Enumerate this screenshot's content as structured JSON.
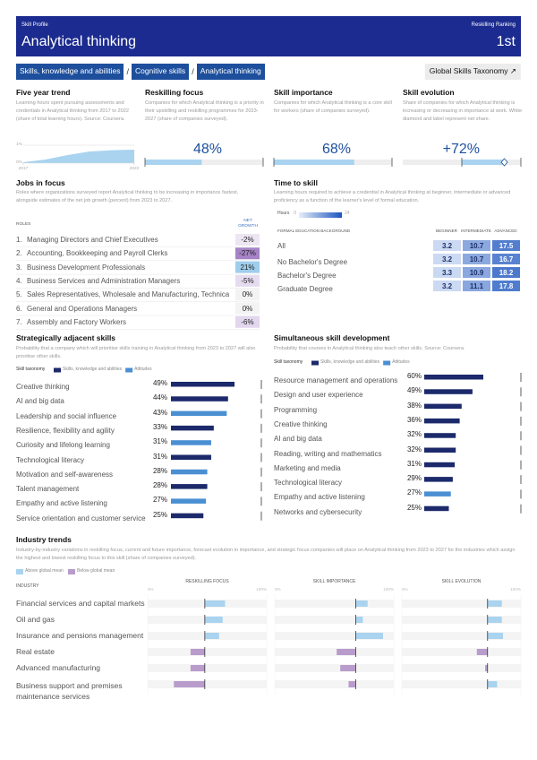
{
  "header": {
    "label": "Skill Profile",
    "ranking_label": "Reskilling Ranking",
    "title": "Analytical thinking",
    "rank": "1st"
  },
  "breadcrumb": [
    "Skills, knowledge and abilities",
    "Cognitive skills",
    "Analytical thinking"
  ],
  "separator": "/",
  "taxonomy_link": "Global Skills Taxonomy ↗",
  "overview": {
    "five_year_trend": {
      "title": "Five year trend",
      "description": "Learning hours spent pursuing assessments and credentials in Analytical thinking from 2017 to 2022 (share of total learning hours). Source: Coursera.",
      "x": [
        2017,
        2018,
        2019,
        2020,
        2021,
        2022
      ],
      "values": [
        0.05,
        0.2,
        0.45,
        0.65,
        0.72,
        0.75
      ],
      "xticks": [
        2017,
        2022
      ],
      "ylim": [
        0,
        1
      ],
      "yticks": [
        {
          "value": 1,
          "label": "1%"
        },
        {
          "value": 0,
          "label": "0%"
        }
      ],
      "color": "#a9d3ef"
    },
    "reskilling_focus": {
      "title": "Reskilling focus",
      "description": "Companies for which Analytical thinking is a priority in their upskilling and reskilling programmes for 2023-2027 (share of companies surveyed).",
      "value": 48,
      "value_label": "48%",
      "xlim": [
        0,
        100
      ],
      "color": "#a9d3ef"
    },
    "skill_importance": {
      "title": "Skill importance",
      "description": "Companies for which Analytical thinking is a core skill for workers (share of companies surveyed).",
      "value": 68,
      "value_label": "68%",
      "xlim": [
        0,
        100
      ],
      "color": "#a9d3ef"
    },
    "skill_evolution": {
      "title": "Skill evolution",
      "description": "Share of companies for which Analytical thinking is increasing or decreasing in importance at work. White diamond and label represent net share.",
      "value": 72,
      "value_label": "+72%",
      "xlim": [
        -100,
        100
      ],
      "color": "#a9d3ef"
    }
  },
  "jobs_in_focus": {
    "title": "Jobs in focus",
    "description": "Roles where organizations surveyed report Analytical thinking to be increasing in importance fastest, alongside estimates of the net job growth (percent) from 2023 to 2027.",
    "columns": [
      "ROLES",
      "NET GROWTH"
    ],
    "rows": [
      {
        "rank": "1.",
        "role": "Managing Directors and Chief Executives",
        "growth": "-2%",
        "color": "#ece6f3"
      },
      {
        "rank": "2.",
        "role": "Accounting, Bookkeeping and Payroll Clerks",
        "growth": "-27%",
        "color": "#a583c6"
      },
      {
        "rank": "3.",
        "role": "Business Development Professionals",
        "growth": "21%",
        "color": "#9fcdec"
      },
      {
        "rank": "4.",
        "role": "Business Services and Administration Managers",
        "growth": "-5%",
        "color": "#e6dcf0"
      },
      {
        "rank": "5.",
        "role": "Sales Representatives, Wholesale and Manufacturing, Technical ...",
        "growth": "0%",
        "color": "#f3f3f3"
      },
      {
        "rank": "6.",
        "role": "General and Operations Managers",
        "growth": "0%",
        "color": "#f3f3f3"
      },
      {
        "rank": "7.",
        "role": "Assembly and Factory Workers",
        "growth": "-6%",
        "color": "#e2d7ee"
      }
    ]
  },
  "time_to_skill": {
    "title": "Time to skill",
    "description": "Learning hours required to achieve a credential in Analytical thinking at beginner, intermediate or advanced proficiency as a function of the learner's level of formal education.",
    "legend": {
      "label": "Hours",
      "min": 0,
      "max": 24
    },
    "columns": [
      "FORMAL EDUCATION BACKGROUND",
      "BEGINNER",
      "INTERMEDIATE",
      "ADVANCED"
    ],
    "rows": [
      {
        "label": "All",
        "values": [
          3.2,
          10.7,
          17.5
        ]
      },
      {
        "label": "No Bachelor's Degree",
        "values": [
          3.2,
          10.7,
          16.7
        ]
      },
      {
        "label": "Bachelor's Degree",
        "values": [
          3.3,
          10.9,
          18.2
        ]
      },
      {
        "label": "Graduate Degree",
        "values": [
          3.2,
          11.1,
          17.8
        ]
      }
    ]
  },
  "adjacent_skills": {
    "title": "Strategically adjacent skills",
    "description": "Probability that a company which will prioritise skills training in Analytical thinking from 2023 to 2027 will also prioritise other skills.",
    "legend": {
      "title": "Skill taxonomy",
      "items": [
        {
          "name": "Skills, knowledge and abilities",
          "color": "#1c2a6b"
        },
        {
          "name": "Attitudes",
          "color": "#4a8fd2"
        }
      ]
    },
    "items": [
      {
        "name": "Creative thinking",
        "value": 49,
        "label": "49%",
        "color": "#1c2a6b"
      },
      {
        "name": "AI and big data",
        "value": 44,
        "label": "44%",
        "color": "#1c2a6b"
      },
      {
        "name": "Leadership and social influence",
        "value": 43,
        "label": "43%",
        "color": "#4a8fd2"
      },
      {
        "name": "Resilience, flexibility and agility",
        "value": 33,
        "label": "33%",
        "color": "#1c2a6b"
      },
      {
        "name": "Curiosity and lifelong learning",
        "value": 31,
        "label": "31%",
        "color": "#4a8fd2"
      },
      {
        "name": "Technological literacy",
        "value": 31,
        "label": "31%",
        "color": "#1c2a6b"
      },
      {
        "name": "Motivation and self-awareness",
        "value": 28,
        "label": "28%",
        "color": "#4a8fd2"
      },
      {
        "name": "Talent management",
        "value": 28,
        "label": "28%",
        "color": "#1c2a6b"
      },
      {
        "name": "Empathy and active listening",
        "value": 27,
        "label": "27%",
        "color": "#4a8fd2"
      },
      {
        "name": "Service orientation and customer service",
        "value": 25,
        "label": "25%",
        "color": "#1c2a6b"
      }
    ]
  },
  "simultaneous_skills": {
    "title": "Simultaneous skill development",
    "description": "Probability that courses in Analytical thinking also teach other skills. Source: Coursera.",
    "legend": {
      "title": "Skill taxonomy",
      "items": [
        {
          "name": "Skills, knowledge and abilities",
          "color": "#1c2a6b"
        },
        {
          "name": "Attitudes",
          "color": "#4a8fd2"
        }
      ]
    },
    "items": [
      {
        "name": "Resource management and operations",
        "value": 60,
        "label": "60%",
        "color": "#1c2a6b"
      },
      {
        "name": "Design and user experience",
        "value": 49,
        "label": "49%",
        "color": "#1c2a6b"
      },
      {
        "name": "Programming",
        "value": 38,
        "label": "38%",
        "color": "#1c2a6b"
      },
      {
        "name": "Creative thinking",
        "value": 36,
        "label": "36%",
        "color": "#1c2a6b"
      },
      {
        "name": "AI and big data",
        "value": 32,
        "label": "32%",
        "color": "#1c2a6b"
      },
      {
        "name": "Reading, writing and mathematics",
        "value": 32,
        "label": "32%",
        "color": "#1c2a6b"
      },
      {
        "name": "Marketing and media",
        "value": 31,
        "label": "31%",
        "color": "#1c2a6b"
      },
      {
        "name": "Technological literacy",
        "value": 29,
        "label": "29%",
        "color": "#1c2a6b"
      },
      {
        "name": "Empathy and active listening",
        "value": 27,
        "label": "27%",
        "color": "#4a8fd2"
      },
      {
        "name": "Networks and cybersecurity",
        "value": 25,
        "label": "25%",
        "color": "#1c2a6b"
      }
    ]
  },
  "industry_trends": {
    "title": "Industry trends",
    "description": "Industry-by-industry variations in reskilling focus, current and future importance, forecast evolution in importance, and strategic focus companies will place on Analytical thinking from 2023 to 2027 for the industries which assign the highest and lowest reskilling focus to this skill (share of companies surveyed).",
    "legend": [
      {
        "name": "Above global mean",
        "color": "#a9d3ef"
      },
      {
        "name": "Below global mean",
        "color": "#b89ccc"
      }
    ],
    "row_header": "INDUSTRY",
    "columns": [
      {
        "title": "RESKILLING FOCUS",
        "global_mean": 48,
        "ticks": [
          {
            "value": 0,
            "label": "0%"
          },
          {
            "value": 100,
            "label": "100%"
          }
        ]
      },
      {
        "title": "SKILL IMPORTANCE",
        "global_mean": 68,
        "ticks": [
          {
            "value": 0,
            "label": "0%"
          },
          {
            "value": 100,
            "label": "100%"
          }
        ]
      },
      {
        "title": "SKILL EVOLUTION",
        "global_mean": 72,
        "ticks": [
          {
            "value": 0,
            "label": "0%"
          },
          {
            "value": 100,
            "label": "100%"
          }
        ]
      }
    ],
    "rows": [
      {
        "name": "Financial services and capital markets",
        "values": [
          65,
          78,
          84
        ]
      },
      {
        "name": "Oil and gas",
        "values": [
          63,
          74,
          84
        ]
      },
      {
        "name": "Insurance and pensions management",
        "values": [
          60,
          91,
          85
        ]
      },
      {
        "name": "Real estate",
        "values": [
          36,
          52,
          63
        ]
      },
      {
        "name": "Advanced manufacturing",
        "values": [
          36,
          55,
          70
        ]
      },
      {
        "name": "Business support and premises maintenance services",
        "values": [
          22,
          62,
          80
        ]
      }
    ]
  }
}
